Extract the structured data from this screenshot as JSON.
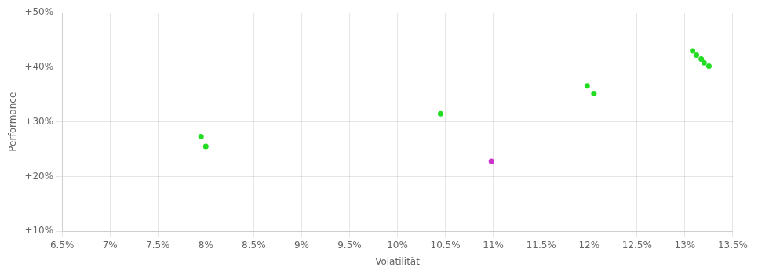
{
  "chart_data": {
    "type": "scatter",
    "xlabel": "Volatilität",
    "ylabel": "Performance",
    "xlim": [
      0.065,
      0.135
    ],
    "ylim": [
      0.1,
      0.5
    ],
    "xticks": [
      {
        "value": 0.065,
        "label": "6.5%"
      },
      {
        "value": 0.07,
        "label": "7%"
      },
      {
        "value": 0.075,
        "label": "7.5%"
      },
      {
        "value": 0.08,
        "label": "8%"
      },
      {
        "value": 0.085,
        "label": "8.5%"
      },
      {
        "value": 0.09,
        "label": "9%"
      },
      {
        "value": 0.095,
        "label": "9.5%"
      },
      {
        "value": 0.1,
        "label": "10%"
      },
      {
        "value": 0.105,
        "label": "10.5%"
      },
      {
        "value": 0.11,
        "label": "11%"
      },
      {
        "value": 0.115,
        "label": "11.5%"
      },
      {
        "value": 0.12,
        "label": "12%"
      },
      {
        "value": 0.125,
        "label": "12.5%"
      },
      {
        "value": 0.13,
        "label": "13%"
      },
      {
        "value": 0.135,
        "label": "13.5%"
      }
    ],
    "yticks": [
      {
        "value": 0.1,
        "label": "+10%"
      },
      {
        "value": 0.2,
        "label": "+20%"
      },
      {
        "value": 0.3,
        "label": "+30%"
      },
      {
        "value": 0.4,
        "label": "+40%"
      },
      {
        "value": 0.5,
        "label": "+50%"
      }
    ],
    "grid": true,
    "series": [
      {
        "color": "#22dd22",
        "x": [
          0.0795,
          0.08,
          0.1045,
          0.1198,
          0.1205,
          0.1308,
          0.1312,
          0.1317,
          0.132,
          0.1325
        ],
        "values": [
          0.273,
          0.255,
          0.315,
          0.366,
          0.352,
          0.43,
          0.422,
          0.415,
          0.408,
          0.402
        ]
      },
      {
        "color": "#cc33cc",
        "x": [
          0.1098
        ],
        "values": [
          0.228
        ]
      }
    ]
  }
}
